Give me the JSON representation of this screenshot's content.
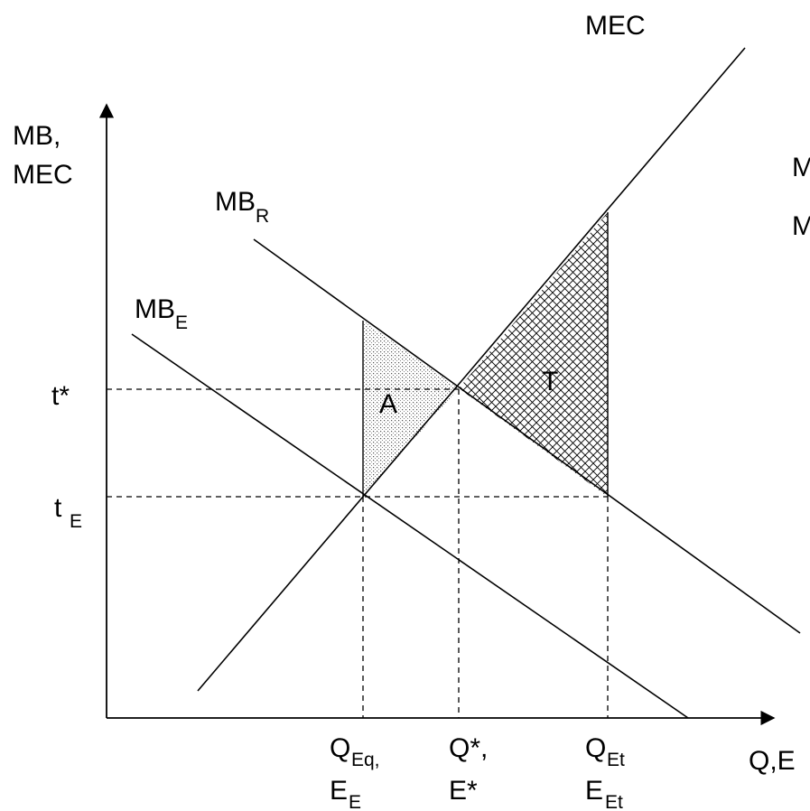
{
  "axes": {
    "y_label_line1": "MB,",
    "y_label_line2": "MEC",
    "x_label": "Q,E"
  },
  "curves": {
    "mec": "MEC",
    "mb_r_main": "MB",
    "mb_r_sub": "R",
    "mb_e_main": "MB",
    "mb_e_sub": "E"
  },
  "price_ticks": {
    "t_star": "t*",
    "t_e_main": "t",
    "t_e_sub": "E"
  },
  "quantity_ticks": {
    "q_eq_main": "Q",
    "q_eq_sub": "Eq,",
    "e_e_main": "E",
    "e_e_sub": "E",
    "q_star": "Q*,",
    "e_star": "E*",
    "q_et_main": "Q",
    "q_et_sub": "Et",
    "e_et_main": "E",
    "e_et_sub": "Et"
  },
  "regions": {
    "a": "A",
    "t": "T"
  },
  "clipped_text": {
    "line1": "M",
    "line2": "M"
  }
}
